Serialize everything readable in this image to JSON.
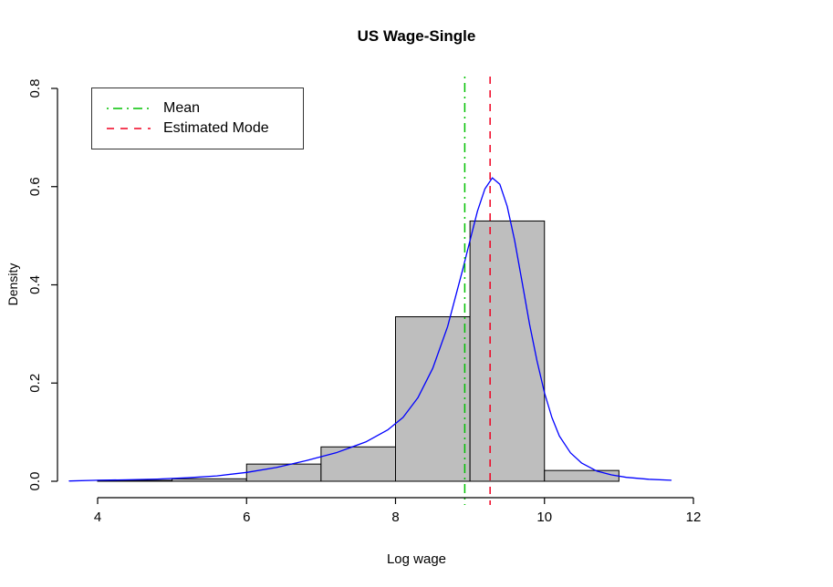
{
  "chart_data": {
    "type": "bar",
    "subtype": "histogram-with-density",
    "title": "US Wage-Single",
    "xlabel": "Log wage",
    "ylabel": "Density",
    "xlim": [
      4,
      12
    ],
    "ylim": [
      0,
      0.8
    ],
    "x_ticks": [
      4,
      6,
      8,
      10,
      12
    ],
    "x_tick_labels": [
      "4",
      "6",
      "8",
      "10",
      "12"
    ],
    "y_ticks": [
      0.0,
      0.2,
      0.4,
      0.6,
      0.8
    ],
    "y_tick_labels": [
      "0.0",
      "0.2",
      "0.4",
      "0.6",
      "0.8"
    ],
    "grid": false,
    "legend_position": "top-left",
    "histogram": {
      "bin_edges": [
        4,
        5,
        6,
        7,
        8,
        9,
        10,
        11
      ],
      "densities": [
        0.002,
        0.005,
        0.035,
        0.07,
        0.335,
        0.53,
        0.022
      ],
      "fill": "#bebebe",
      "stroke": "#000000"
    },
    "density_curve": {
      "color": "#0000ff",
      "points": [
        [
          3.62,
          0.0005
        ],
        [
          4.0,
          0.002
        ],
        [
          4.4,
          0.003
        ],
        [
          4.8,
          0.0045
        ],
        [
          5.2,
          0.007
        ],
        [
          5.6,
          0.011
        ],
        [
          6.0,
          0.018
        ],
        [
          6.4,
          0.028
        ],
        [
          6.8,
          0.042
        ],
        [
          7.2,
          0.058
        ],
        [
          7.6,
          0.08
        ],
        [
          7.9,
          0.105
        ],
        [
          8.1,
          0.13
        ],
        [
          8.3,
          0.17
        ],
        [
          8.5,
          0.23
        ],
        [
          8.7,
          0.315
        ],
        [
          8.9,
          0.43
        ],
        [
          9.0,
          0.49
        ],
        [
          9.1,
          0.55
        ],
        [
          9.2,
          0.595
        ],
        [
          9.3,
          0.618
        ],
        [
          9.4,
          0.605
        ],
        [
          9.5,
          0.56
        ],
        [
          9.6,
          0.49
        ],
        [
          9.7,
          0.405
        ],
        [
          9.8,
          0.32
        ],
        [
          9.9,
          0.245
        ],
        [
          10.0,
          0.18
        ],
        [
          10.1,
          0.13
        ],
        [
          10.2,
          0.092
        ],
        [
          10.35,
          0.058
        ],
        [
          10.5,
          0.037
        ],
        [
          10.7,
          0.021
        ],
        [
          10.9,
          0.013
        ],
        [
          11.1,
          0.008
        ],
        [
          11.4,
          0.004
        ],
        [
          11.7,
          0.002
        ]
      ]
    },
    "mean_line": {
      "x": 8.93,
      "color": "#00c000",
      "style": "dash-dot",
      "label": "Mean"
    },
    "mode_line": {
      "x": 9.27,
      "color": "#f00020",
      "style": "dashed",
      "label": "Estimated Mode"
    }
  },
  "legend": {
    "items": [
      {
        "label": "Mean",
        "color": "#00c000",
        "dash": "2,5,10,5"
      },
      {
        "label": "Estimated Mode",
        "color": "#f00020",
        "dash": "8,7"
      }
    ]
  }
}
